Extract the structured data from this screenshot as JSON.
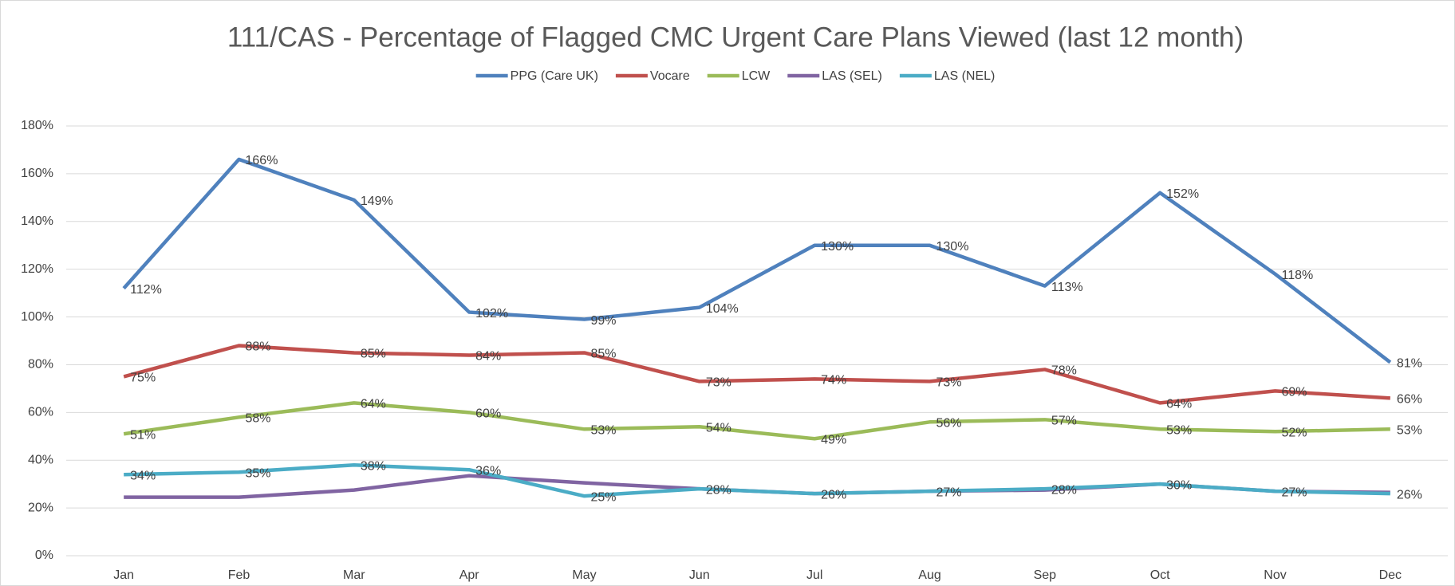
{
  "chart_data": {
    "type": "line",
    "title": "111/CAS - Percentage of Flagged CMC Urgent Care Plans Viewed (last 12 month)",
    "categories": [
      "Jan",
      "Feb",
      "Mar",
      "Apr",
      "May",
      "Jun",
      "Jul",
      "Aug",
      "Sep",
      "Oct",
      "Nov",
      "Dec"
    ],
    "series": [
      {
        "name": "PPG (Care UK)",
        "color": "#4f81bd",
        "values": [
          112,
          166,
          149,
          102,
          99,
          104,
          130,
          130,
          113,
          152,
          118,
          81
        ],
        "value_labels": [
          "112%",
          "166%",
          "149%",
          "102%",
          "99%",
          "104%",
          "130%",
          "130%",
          "113%",
          "152%",
          "118%",
          "81%"
        ]
      },
      {
        "name": "Vocare",
        "color": "#c0504d",
        "values": [
          75,
          88,
          85,
          84,
          85,
          73,
          74,
          73,
          78,
          64,
          69,
          66
        ],
        "value_labels": [
          "75%",
          "88%",
          "85%",
          "84%",
          "85%",
          "73%",
          "74%",
          "73%",
          "78%",
          "64%",
          "69%",
          "66%"
        ]
      },
      {
        "name": "LCW",
        "color": "#9bbb59",
        "values": [
          51,
          58,
          64,
          60,
          53,
          54,
          49,
          56,
          57,
          53,
          52,
          53
        ],
        "value_labels": [
          "51%",
          "58%",
          "64%",
          "60%",
          "53%",
          "54%",
          "49%",
          "56%",
          "57%",
          "53%",
          "52%",
          "53%"
        ]
      },
      {
        "name": "LAS (SEL)",
        "color": "#8064a2",
        "values": [
          24.5,
          24.5,
          27.5,
          33.5,
          30.5,
          28,
          26,
          27,
          27.5,
          30,
          27,
          26.5
        ]
      },
      {
        "name": "LAS (NEL)",
        "color": "#4bacc6",
        "values": [
          34,
          35,
          38,
          36,
          25,
          28,
          26,
          27,
          28,
          30,
          27,
          26
        ],
        "value_labels": [
          "34%",
          "35%",
          "38%",
          "36%",
          "25%",
          "28%",
          "26%",
          "27%",
          "28%",
          "30%",
          "27%",
          "26%"
        ]
      }
    ],
    "ylim": [
      0,
      180
    ],
    "yticks": [
      {
        "value": 0,
        "label": "0%"
      },
      {
        "value": 20,
        "label": "20%"
      },
      {
        "value": 40,
        "label": "40%"
      },
      {
        "value": 60,
        "label": "60%"
      },
      {
        "value": 80,
        "label": "80%"
      },
      {
        "value": 100,
        "label": "100%"
      },
      {
        "value": 120,
        "label": "120%"
      },
      {
        "value": 140,
        "label": "140%"
      },
      {
        "value": 160,
        "label": "160%"
      },
      {
        "value": 180,
        "label": "180%"
      }
    ],
    "grid": true,
    "legend": "top"
  }
}
